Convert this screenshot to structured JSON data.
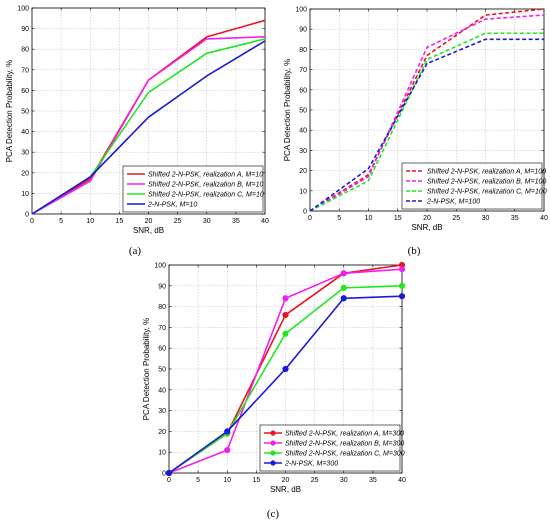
{
  "chart_data": [
    {
      "type": "line",
      "caption": "(a)",
      "xlabel": "SNR, dB",
      "ylabel": "PCA Detection Probability, %",
      "xlim": [
        0,
        40
      ],
      "ylim": [
        0,
        100
      ],
      "xticks": [
        0,
        5,
        10,
        15,
        20,
        25,
        30,
        35,
        40
      ],
      "yticks": [
        0,
        10,
        20,
        30,
        40,
        50,
        60,
        70,
        80,
        90,
        100
      ],
      "grid": true,
      "legend_position": "bottom-right",
      "line_style": "solid",
      "markers": false,
      "x": [
        0,
        10,
        20,
        30,
        40
      ],
      "series": [
        {
          "name": "Shifted 2-N-PSK, realization A, M=10",
          "color": "#e8141e",
          "values": [
            0,
            17,
            65,
            86,
            94
          ]
        },
        {
          "name": "Shifted 2-N-PSK, realization B, M=10",
          "color": "#f020f0",
          "values": [
            0,
            16,
            65,
            85,
            86
          ]
        },
        {
          "name": "Shifted 2-N-PSK, realization C, M=10",
          "color": "#22e622",
          "values": [
            0,
            18,
            59,
            78,
            85
          ]
        },
        {
          "name": "2-N-PSK, M=10",
          "color": "#1a1ad6",
          "values": [
            0,
            18,
            47,
            67,
            84
          ]
        }
      ]
    },
    {
      "type": "line",
      "caption": "(b)",
      "xlabel": "SNR, dB",
      "ylabel": "PCA Detection Probability, %",
      "xlim": [
        0,
        40
      ],
      "ylim": [
        0,
        100
      ],
      "xticks": [
        0,
        5,
        10,
        15,
        20,
        25,
        30,
        35,
        40
      ],
      "yticks": [
        0,
        10,
        20,
        30,
        40,
        50,
        60,
        70,
        80,
        90,
        100
      ],
      "grid": true,
      "legend_position": "bottom-right",
      "line_style": "dashed",
      "markers": false,
      "x": [
        0,
        10,
        20,
        30,
        40
      ],
      "series": [
        {
          "name": "Shifted 2-N-PSK, realization A, M=100",
          "color": "#e8141e",
          "values": [
            0,
            18,
            77,
            97,
            100
          ]
        },
        {
          "name": "Shifted 2-N-PSK, realization B, M=100",
          "color": "#f020f0",
          "values": [
            0,
            17,
            81,
            95,
            97
          ]
        },
        {
          "name": "Shifted 2-N-PSK, realization C, M=100",
          "color": "#22e622",
          "values": [
            0,
            15,
            75,
            88,
            88
          ]
        },
        {
          "name": "2-N-PSK, M=100",
          "color": "#1a1ad6",
          "values": [
            0,
            21,
            73,
            85,
            85
          ]
        }
      ]
    },
    {
      "type": "line",
      "caption": "(c)",
      "xlabel": "SNR, dB",
      "ylabel": "PCA Detection Probability, %",
      "xlim": [
        0,
        40
      ],
      "ylim": [
        0,
        100
      ],
      "xticks": [
        0,
        5,
        10,
        15,
        20,
        25,
        30,
        35,
        40
      ],
      "yticks": [
        0,
        10,
        20,
        30,
        40,
        50,
        60,
        70,
        80,
        90,
        100
      ],
      "grid": true,
      "legend_position": "bottom-right",
      "line_style": "solid",
      "markers": true,
      "x": [
        0,
        10,
        20,
        30,
        40
      ],
      "series": [
        {
          "name": "Shifted 2-N-PSK, realization A, M=300",
          "color": "#e8141e",
          "values": [
            0,
            19,
            76,
            96,
            100
          ]
        },
        {
          "name": "Shifted 2-N-PSK, realization B, M=300",
          "color": "#f020f0",
          "values": [
            0,
            11,
            84,
            96,
            98
          ]
        },
        {
          "name": "Shifted 2-N-PSK, realization C, M=300",
          "color": "#22e622",
          "values": [
            0,
            19,
            67,
            89,
            90
          ]
        },
        {
          "name": "2-N-PSK, M=300",
          "color": "#1a1ad6",
          "values": [
            0,
            20,
            50,
            84,
            85
          ]
        }
      ]
    }
  ]
}
